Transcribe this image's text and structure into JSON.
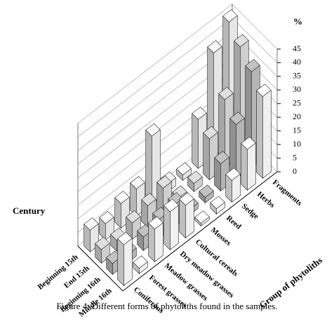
{
  "chart_data": {
    "type": "bar3d",
    "caption": "Figure 4. Different forms of phytoliths found in the samples.",
    "z_label": "%",
    "x_label": "Group of phytoliths",
    "y_label": "Century",
    "categories": [
      "Coniferous",
      "Forest grasses",
      "Meadow grasses",
      "Dry meadow grasses",
      "Cultural cereals",
      "Mosses",
      "Reed",
      "Sedge",
      "Herbs",
      "Fragments"
    ],
    "series": [
      {
        "name": "Beginning 15th",
        "color": "#e6e6e6",
        "values": [
          8,
          6,
          9,
          10,
          25,
          3,
          2,
          18,
          38,
          45
        ]
      },
      {
        "name": "End 15th",
        "color": "#cfcfcf",
        "values": [
          5,
          4,
          6,
          8,
          10,
          2,
          3,
          15,
          25,
          40
        ]
      },
      {
        "name": "Beginning 16th",
        "color": "#b5b5b5",
        "values": [
          4,
          3,
          5,
          7,
          8,
          2,
          2,
          10,
          20,
          35
        ]
      },
      {
        "name": "Middle 16th",
        "color": "#f0f0f0",
        "values": [
          15,
          2,
          12,
          14,
          12,
          1,
          2,
          8,
          15,
          30
        ]
      }
    ],
    "zlim": [
      0,
      45
    ],
    "zticks": [
      0,
      5,
      10,
      15,
      20,
      25,
      30,
      35,
      40,
      45
    ],
    "grid": true
  }
}
